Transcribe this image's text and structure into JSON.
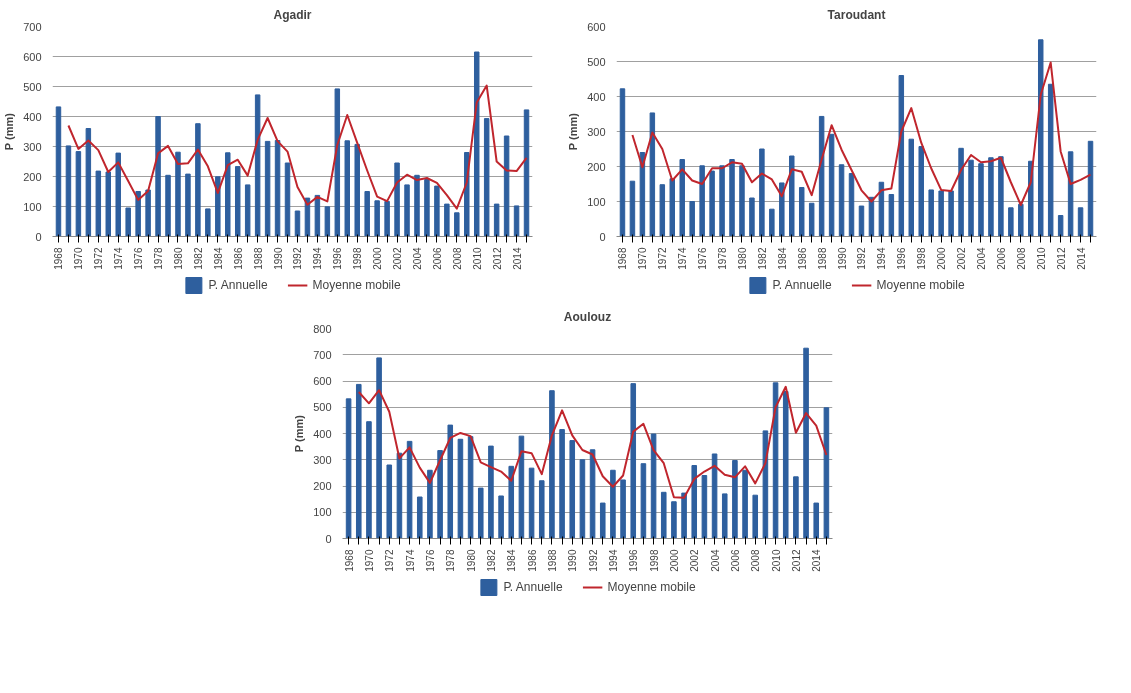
{
  "chart_data": [
    {
      "type": "bar",
      "title": "Agadir",
      "ylabel": "P (mm)",
      "categories": [
        "1968",
        null,
        "1970",
        null,
        "1972",
        null,
        "1974",
        null,
        "1976",
        null,
        "1978",
        null,
        "1980",
        null,
        "1982",
        null,
        "1984",
        null,
        "1986",
        null,
        "1988",
        null,
        "1990",
        null,
        "1992",
        null,
        "1994",
        null,
        "1996",
        null,
        "1998",
        null,
        "2000",
        null,
        "2002",
        null,
        "2004",
        null,
        "2006",
        null,
        "2008",
        null,
        "2010",
        null,
        "2012",
        null,
        "2014",
        null
      ],
      "ylim": [
        0,
        700
      ],
      "yticks": [
        0,
        100,
        200,
        300,
        400,
        500,
        600,
        700
      ],
      "grid": "y",
      "legend": "bottom",
      "series": [
        {
          "name": "P. Annuelle",
          "color": "#2e5f9e",
          "values": [
            432,
            302,
            283,
            360,
            218,
            215,
            278,
            95,
            150,
            155,
            400,
            204,
            281,
            208,
            376,
            92,
            199,
            279,
            233,
            172,
            472,
            317,
            320,
            245,
            85,
            128,
            137,
            99,
            492,
            319,
            307,
            150,
            119,
            117,
            245,
            172,
            204,
            190,
            168,
            108,
            79,
            280,
            615,
            393,
            108,
            335,
            102,
            422
          ]
        },
        {
          "name": "Moyenne mobile",
          "type": "line",
          "color": "#c0262d",
          "values": [
            null,
            370,
            292,
            320,
            288,
            215,
            247,
            185,
            122,
            152,
            277,
            302,
            242,
            244,
            290,
            234,
            145,
            238,
            256,
            203,
            322,
            395,
            318,
            283,
            165,
            106,
            132,
            117,
            305,
            405,
            312,
            220,
            133,
            118,
            180,
            206,
            188,
            195,
            179,
            138,
            93,
            180,
            447,
            503,
            250,
            220,
            218,
            262
          ]
        }
      ]
    },
    {
      "type": "bar",
      "title": "Taroudant",
      "ylabel": "P (mm)",
      "categories": [
        "1968",
        null,
        "1970",
        null,
        "1972",
        null,
        "1974",
        null,
        "1976",
        null,
        "1978",
        null,
        "1980",
        null,
        "1982",
        null,
        "1984",
        null,
        "1986",
        null,
        "1988",
        null,
        "1990",
        null,
        "1992",
        null,
        "1994",
        null,
        "1996",
        null,
        "1998",
        null,
        "2000",
        null,
        "2002",
        null,
        "2004",
        null,
        "2006",
        null,
        "2008",
        null,
        "2010",
        null,
        "2012",
        null,
        "2014",
        null
      ],
      "ylim": [
        0,
        600
      ],
      "yticks": [
        0,
        100,
        200,
        300,
        400,
        500,
        600
      ],
      "grid": "y",
      "legend": "bottom",
      "series": [
        {
          "name": "P. Annuelle",
          "color": "#2e5f9e",
          "values": [
            422,
            158,
            240,
            353,
            148,
            165,
            220,
            100,
            202,
            187,
            202,
            220,
            202,
            110,
            250,
            78,
            153,
            230,
            140,
            95,
            343,
            292,
            205,
            180,
            87,
            112,
            155,
            120,
            460,
            278,
            257,
            133,
            130,
            130,
            252,
            218,
            208,
            225,
            228,
            82,
            92,
            215,
            562,
            435,
            60,
            242,
            82,
            272
          ]
        },
        {
          "name": "Moyenne mobile",
          "type": "line",
          "color": "#c0262d",
          "values": [
            null,
            290,
            198,
            297,
            250,
            160,
            192,
            160,
            150,
            195,
            195,
            212,
            208,
            155,
            180,
            163,
            115,
            192,
            185,
            118,
            220,
            318,
            248,
            190,
            132,
            100,
            132,
            137,
            300,
            367,
            268,
            195,
            133,
            130,
            190,
            233,
            212,
            215,
            225,
            155,
            90,
            155,
            405,
            497,
            243,
            150,
            162,
            177
          ]
        }
      ]
    },
    {
      "type": "bar",
      "title": "Aoulouz",
      "ylabel": "P (mm)",
      "categories": [
        "1968",
        null,
        "1970",
        null,
        "1972",
        null,
        "1974",
        null,
        "1976",
        null,
        "1978",
        null,
        "1980",
        null,
        "1982",
        null,
        "1984",
        null,
        "1986",
        null,
        "1988",
        null,
        "1990",
        null,
        "1992",
        null,
        "1994",
        null,
        "1996",
        null,
        "1998",
        null,
        "2000",
        null,
        "2002",
        null,
        "2004",
        null,
        "2006",
        null,
        "2008",
        null,
        "2010",
        null,
        "2012",
        null,
        "2014",
        null
      ],
      "ylim": [
        0,
        800
      ],
      "yticks": [
        0,
        100,
        200,
        300,
        400,
        500,
        600,
        700,
        800
      ],
      "grid": "y",
      "legend": "bottom",
      "series": [
        {
          "name": "P. Annuelle",
          "color": "#2e5f9e",
          "values": [
            532,
            587,
            445,
            688,
            280,
            325,
            370,
            158,
            260,
            335,
            432,
            378,
            388,
            192,
            352,
            162,
            275,
            390,
            268,
            220,
            563,
            415,
            373,
            300,
            338,
            135,
            260,
            223,
            590,
            285,
            398,
            176,
            140,
            173,
            278,
            240,
            322,
            170,
            297,
            260,
            165,
            410,
            593,
            560,
            235,
            725,
            135,
            498
          ]
        },
        {
          "name": "Moyenne mobile",
          "type": "line",
          "color": "#c0262d",
          "values": [
            null,
            558,
            515,
            565,
            483,
            305,
            347,
            270,
            212,
            298,
            383,
            402,
            390,
            290,
            272,
            255,
            220,
            332,
            325,
            245,
            393,
            488,
            393,
            337,
            320,
            237,
            197,
            240,
            407,
            437,
            337,
            287,
            157,
            155,
            227,
            255,
            277,
            243,
            233,
            275,
            210,
            287,
            500,
            578,
            403,
            478,
            430,
            318
          ]
        }
      ]
    }
  ]
}
